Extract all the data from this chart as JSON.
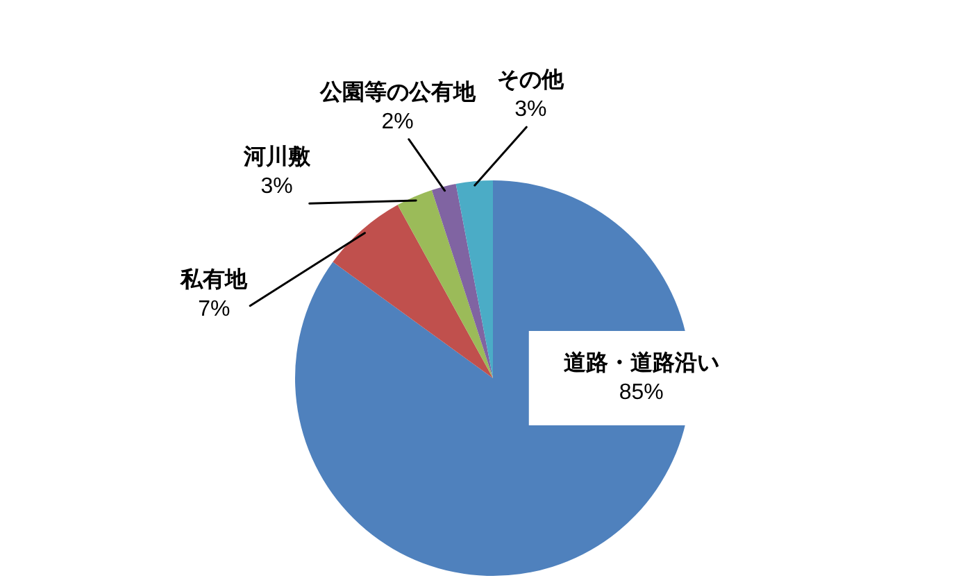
{
  "chart_data": {
    "type": "pie",
    "categories": [
      "道路・道路沿い",
      "私有地",
      "河川敷",
      "公園等の公有地",
      "その他"
    ],
    "values": [
      85,
      7,
      3,
      2,
      3
    ],
    "colors": [
      "#4f81bd",
      "#c0504d",
      "#9bbb59",
      "#8064a2",
      "#4bacc6"
    ],
    "value_labels": [
      "85%",
      "7%",
      "3%",
      "2%",
      "3%"
    ]
  }
}
